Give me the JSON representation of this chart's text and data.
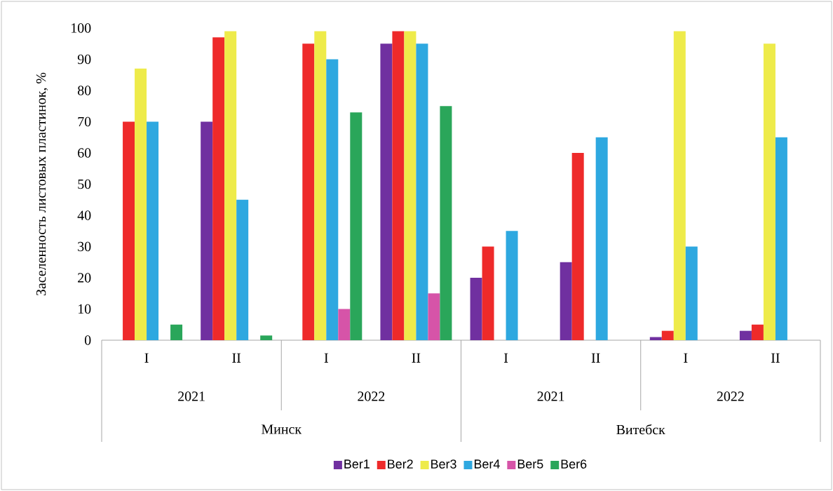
{
  "chart_data": {
    "type": "bar",
    "ylabel": "Заселенность листовых пластинок, %",
    "categories": [
      "I",
      "II",
      "I",
      "II",
      "I",
      "II",
      "I",
      "II"
    ],
    "annotations": [
      "2021",
      "2022",
      "2021",
      "2022",
      "Минск",
      "Витебск"
    ],
    "ylim": [
      0,
      100
    ],
    "yticks": [
      0,
      10,
      20,
      30,
      40,
      50,
      60,
      70,
      80,
      90,
      100
    ],
    "legend": "bottom",
    "series": [
      {
        "name": "Ber1",
        "color": "#7030a0",
        "values": [
          0,
          70,
          0,
          95,
          20,
          25,
          1,
          3
        ]
      },
      {
        "name": "Ber2",
        "color": "#ee2a2a",
        "values": [
          70,
          97,
          95,
          99,
          30,
          60,
          3,
          5
        ]
      },
      {
        "name": "Ber3",
        "color": "#eeeb4a",
        "values": [
          87,
          99,
          99,
          99,
          0,
          0,
          99,
          95
        ]
      },
      {
        "name": "Ber4",
        "color": "#2ea8e0",
        "values": [
          70,
          45,
          90,
          95,
          35,
          65,
          30,
          65
        ]
      },
      {
        "name": "Ber5",
        "color": "#d654a8",
        "values": [
          0,
          0,
          10,
          15,
          0,
          0,
          0,
          0
        ]
      },
      {
        "name": "Ber6",
        "color": "#2aa65a",
        "values": [
          5,
          1.5,
          73,
          75,
          0,
          0,
          0,
          0
        ]
      }
    ]
  }
}
